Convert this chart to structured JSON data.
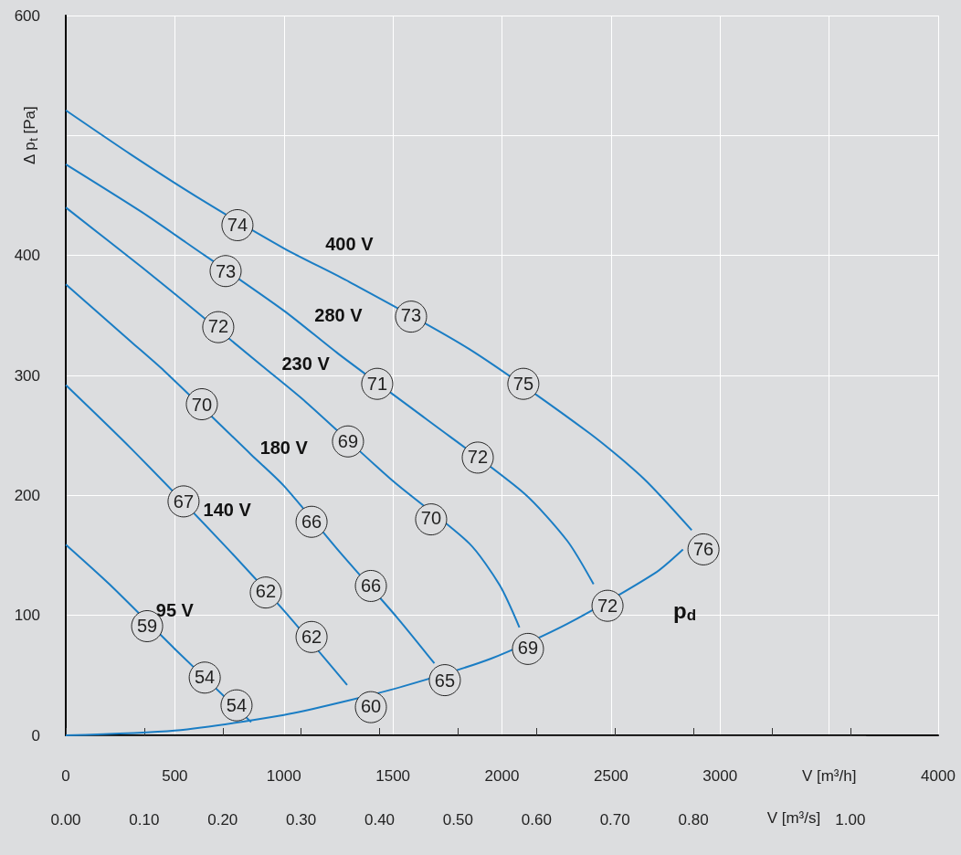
{
  "chart_data": {
    "type": "line",
    "xlabel": "V [m³/h]",
    "ylabel": "Δ p$_{t}$ [Pa]",
    "x2label": "V [m³/s]",
    "xlim": [
      0,
      4000
    ],
    "xticks": [
      0,
      500,
      1000,
      1500,
      2000,
      2500,
      3000,
      {
        "value": 3500,
        "label": null
      },
      4000
    ],
    "ylim": [
      0,
      600
    ],
    "yticks": [
      0,
      100,
      200,
      300,
      400,
      {
        "value": 500,
        "label": null
      },
      600
    ],
    "x2lim": [
      0,
      1.02
    ],
    "x2ticks": [
      {
        "value": 0,
        "label": "0.00"
      },
      {
        "value": 0.1,
        "label": "0.10"
      },
      {
        "value": 0.2,
        "label": "0.20"
      },
      {
        "value": 0.3,
        "label": "0.30"
      },
      {
        "value": 0.4,
        "label": "0.40"
      },
      {
        "value": 0.5,
        "label": "0.50"
      },
      {
        "value": 0.6,
        "label": "0.60"
      },
      {
        "value": 0.7,
        "label": "0.70"
      },
      {
        "value": 0.8,
        "label": "0.80"
      },
      {
        "value": 0.9,
        "label": null
      },
      {
        "value": 1,
        "label": "1.00"
      }
    ],
    "grid": true,
    "legend": false,
    "marker": "none",
    "line_style": "solid",
    "series": [
      {
        "name": "400 V",
        "color": "#1a7dc4",
        "x": [
          0,
          300,
          600,
          1000,
          1300,
          1850,
          2400,
          2650,
          2870
        ],
        "values": [
          521,
          484,
          449,
          406,
          378,
          322,
          252,
          214,
          171
        ]
      },
      {
        "name": "280 V",
        "color": "#1a7dc4",
        "x": [
          0,
          350,
          550,
          1000,
          1250,
          1650,
          2100,
          2300,
          2420
        ],
        "values": [
          476,
          436,
          411,
          354,
          318,
          264,
          202,
          162,
          126
        ]
      },
      {
        "name": "230 V",
        "color": "#1a7dc4",
        "x": [
          0,
          350,
          500,
          900,
          1100,
          1500,
          1850,
          1990,
          2080
        ],
        "values": [
          440,
          390,
          368,
          308,
          278,
          212,
          160,
          125,
          90
        ]
      },
      {
        "name": "180 V",
        "color": "#1a7dc4",
        "x": [
          0,
          300,
          450,
          850,
          1000,
          1260,
          1520,
          1690
        ],
        "values": [
          376,
          328,
          304,
          234,
          208,
          152,
          98,
          60
        ]
      },
      {
        "name": "140 V",
        "color": "#1a7dc4",
        "x": [
          0,
          300,
          740,
          1000,
          1290
        ],
        "values": [
          292,
          239,
          156,
          104,
          42
        ]
      },
      {
        "name": "95 V",
        "color": "#1a7dc4",
        "x": [
          0,
          200,
          500,
          850
        ],
        "values": [
          159,
          126,
          72,
          11
        ]
      },
      {
        "color": "#1a7dc4",
        "x": [
          0,
          500,
          1000,
          1250,
          1550,
          1950,
          2300,
          2700,
          2830
        ],
        "values": [
          0,
          4,
          17,
          27,
          41,
          64,
          93,
          135,
          155
        ]
      }
    ],
    "annotations": [
      "p$_{d}$",
      {
        "text": "74",
        "x": 787,
        "y": 426
      },
      {
        "text": "73",
        "x": 733,
        "y": 387
      },
      {
        "text": "72",
        "x": 699,
        "y": 341
      },
      {
        "text": "70",
        "x": 624,
        "y": 276
      },
      {
        "text": "67",
        "x": 540,
        "y": 195
      },
      {
        "text": "59",
        "x": 373,
        "y": 91
      },
      {
        "text": "73",
        "x": 1583,
        "y": 350
      },
      {
        "text": "71",
        "x": 1428,
        "y": 293
      },
      {
        "text": "69",
        "x": 1294,
        "y": 245
      },
      {
        "text": "66",
        "x": 1127,
        "y": 178
      },
      {
        "text": "62",
        "x": 917,
        "y": 120
      },
      {
        "text": "54",
        "x": 637,
        "y": 49
      },
      {
        "text": "54",
        "x": 783,
        "y": 25
      },
      {
        "text": "75",
        "x": 2098,
        "y": 293
      },
      {
        "text": "72",
        "x": 1889,
        "y": 232
      },
      {
        "text": "70",
        "x": 1675,
        "y": 181
      },
      {
        "text": "66",
        "x": 1399,
        "y": 125
      },
      {
        "text": "62",
        "x": 1127,
        "y": 82
      },
      {
        "text": "60",
        "x": 1399,
        "y": 24
      },
      {
        "text": "76",
        "x": 2924,
        "y": 155
      },
      {
        "text": "72",
        "x": 2484,
        "y": 108
      },
      {
        "text": "69",
        "x": 2119,
        "y": 73
      },
      {
        "text": "65",
        "x": 1738,
        "y": 46
      }
    ]
  }
}
